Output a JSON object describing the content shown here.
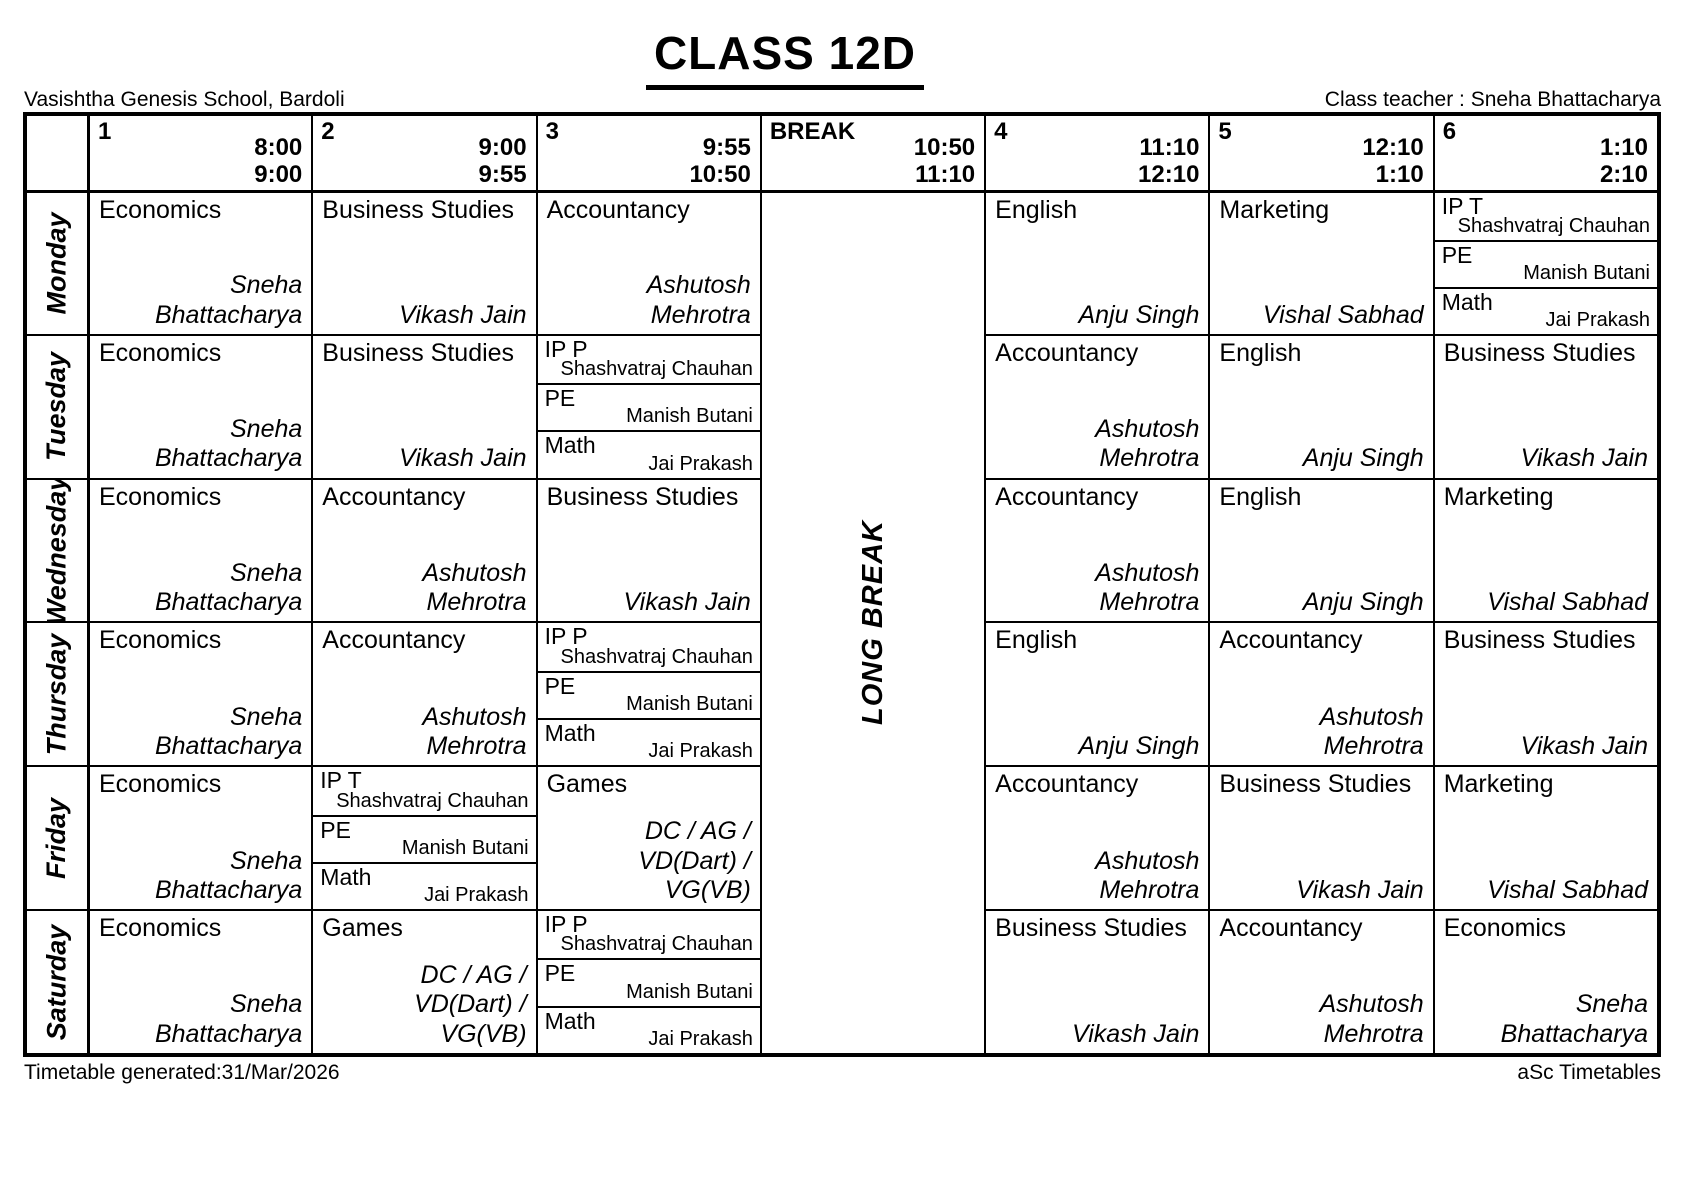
{
  "page": {
    "title": "CLASS 12D",
    "school": "Vasishtha Genesis School, Bardoli",
    "class_teacher": "Class teacher : Sneha Bhattacharya",
    "footer_left": "Timetable generated:31/Mar/2026",
    "footer_right": "aSc Timetables"
  },
  "timetable": {
    "long_break_label": "LONG BREAK",
    "periods": [
      {
        "label": "1",
        "start": "8:00",
        "end": "9:00"
      },
      {
        "label": "2",
        "start": "9:00",
        "end": "9:55"
      },
      {
        "label": "3",
        "start": "9:55",
        "end": "10:50"
      },
      {
        "label": "BREAK",
        "start": "10:50",
        "end": "11:10"
      },
      {
        "label": "4",
        "start": "11:10",
        "end": "12:10"
      },
      {
        "label": "5",
        "start": "12:10",
        "end": "1:10"
      },
      {
        "label": "6",
        "start": "1:10",
        "end": "2:10"
      }
    ],
    "days": [
      {
        "name": "Monday",
        "lessons": [
          {
            "type": "single",
            "subject": "Economics",
            "teacher": "Sneha Bhattacharya"
          },
          {
            "type": "single",
            "subject": "Business Studies",
            "teacher": "Vikash Jain"
          },
          {
            "type": "single",
            "subject": "Accountancy",
            "teacher": "Ashutosh Mehrotra"
          },
          {
            "type": "single",
            "subject": "English",
            "teacher": "Anju Singh"
          },
          {
            "type": "single",
            "subject": "Marketing",
            "teacher": "Vishal Sabhad"
          },
          {
            "type": "split",
            "parts": [
              {
                "subject": "IP T",
                "teacher": "Shashvatraj Chauhan"
              },
              {
                "subject": "PE",
                "teacher": "Manish Butani"
              },
              {
                "subject": "Math",
                "teacher": "Jai Prakash"
              }
            ]
          }
        ]
      },
      {
        "name": "Tuesday",
        "lessons": [
          {
            "type": "single",
            "subject": "Economics",
            "teacher": "Sneha Bhattacharya"
          },
          {
            "type": "single",
            "subject": "Business Studies",
            "teacher": "Vikash Jain"
          },
          {
            "type": "split",
            "parts": [
              {
                "subject": "IP P",
                "teacher": "Shashvatraj Chauhan"
              },
              {
                "subject": "PE",
                "teacher": "Manish Butani"
              },
              {
                "subject": "Math",
                "teacher": "Jai Prakash"
              }
            ]
          },
          {
            "type": "single",
            "subject": "Accountancy",
            "teacher": "Ashutosh Mehrotra"
          },
          {
            "type": "single",
            "subject": "English",
            "teacher": "Anju Singh"
          },
          {
            "type": "single",
            "subject": "Business Studies",
            "teacher": "Vikash Jain"
          }
        ]
      },
      {
        "name": "Wednesday",
        "lessons": [
          {
            "type": "single",
            "subject": "Economics",
            "teacher": "Sneha Bhattacharya"
          },
          {
            "type": "single",
            "subject": "Accountancy",
            "teacher": "Ashutosh Mehrotra"
          },
          {
            "type": "single",
            "subject": "Business Studies",
            "teacher": "Vikash Jain"
          },
          {
            "type": "single",
            "subject": "Accountancy",
            "teacher": "Ashutosh Mehrotra"
          },
          {
            "type": "single",
            "subject": "English",
            "teacher": "Anju Singh"
          },
          {
            "type": "single",
            "subject": "Marketing",
            "teacher": "Vishal Sabhad"
          }
        ]
      },
      {
        "name": "Thursday",
        "lessons": [
          {
            "type": "single",
            "subject": "Economics",
            "teacher": "Sneha Bhattacharya"
          },
          {
            "type": "single",
            "subject": "Accountancy",
            "teacher": "Ashutosh Mehrotra"
          },
          {
            "type": "split",
            "parts": [
              {
                "subject": "IP P",
                "teacher": "Shashvatraj Chauhan"
              },
              {
                "subject": "PE",
                "teacher": "Manish Butani"
              },
              {
                "subject": "Math",
                "teacher": "Jai Prakash"
              }
            ]
          },
          {
            "type": "single",
            "subject": "English",
            "teacher": "Anju Singh"
          },
          {
            "type": "single",
            "subject": "Accountancy",
            "teacher": "Ashutosh Mehrotra"
          },
          {
            "type": "single",
            "subject": "Business Studies",
            "teacher": "Vikash Jain"
          }
        ]
      },
      {
        "name": "Friday",
        "lessons": [
          {
            "type": "single",
            "subject": "Economics",
            "teacher": "Sneha Bhattacharya"
          },
          {
            "type": "split",
            "parts": [
              {
                "subject": "IP T",
                "teacher": "Shashvatraj Chauhan"
              },
              {
                "subject": "PE",
                "teacher": "Manish Butani"
              },
              {
                "subject": "Math",
                "teacher": "Jai Prakash"
              }
            ]
          },
          {
            "type": "single",
            "subject": "Games",
            "teacher": "DC / AG / VD(Dart) / VG(VB)"
          },
          {
            "type": "single",
            "subject": "Accountancy",
            "teacher": "Ashutosh Mehrotra"
          },
          {
            "type": "single",
            "subject": "Business Studies",
            "teacher": "Vikash Jain"
          },
          {
            "type": "single",
            "subject": "Marketing",
            "teacher": "Vishal Sabhad"
          }
        ]
      },
      {
        "name": "Saturday",
        "lessons": [
          {
            "type": "single",
            "subject": "Economics",
            "teacher": "Sneha Bhattacharya"
          },
          {
            "type": "single",
            "subject": "Games",
            "teacher": "DC / AG / VD(Dart) / VG(VB)"
          },
          {
            "type": "split",
            "parts": [
              {
                "subject": "IP P",
                "teacher": "Shashvatraj Chauhan"
              },
              {
                "subject": "PE",
                "teacher": "Manish Butani"
              },
              {
                "subject": "Math",
                "teacher": "Jai Prakash"
              }
            ]
          },
          {
            "type": "single",
            "subject": "Business Studies",
            "teacher": "Vikash Jain"
          },
          {
            "type": "single",
            "subject": "Accountancy",
            "teacher": "Ashutosh Mehrotra"
          },
          {
            "type": "single",
            "subject": "Economics",
            "teacher": "Sneha Bhattacharya"
          }
        ]
      }
    ]
  }
}
